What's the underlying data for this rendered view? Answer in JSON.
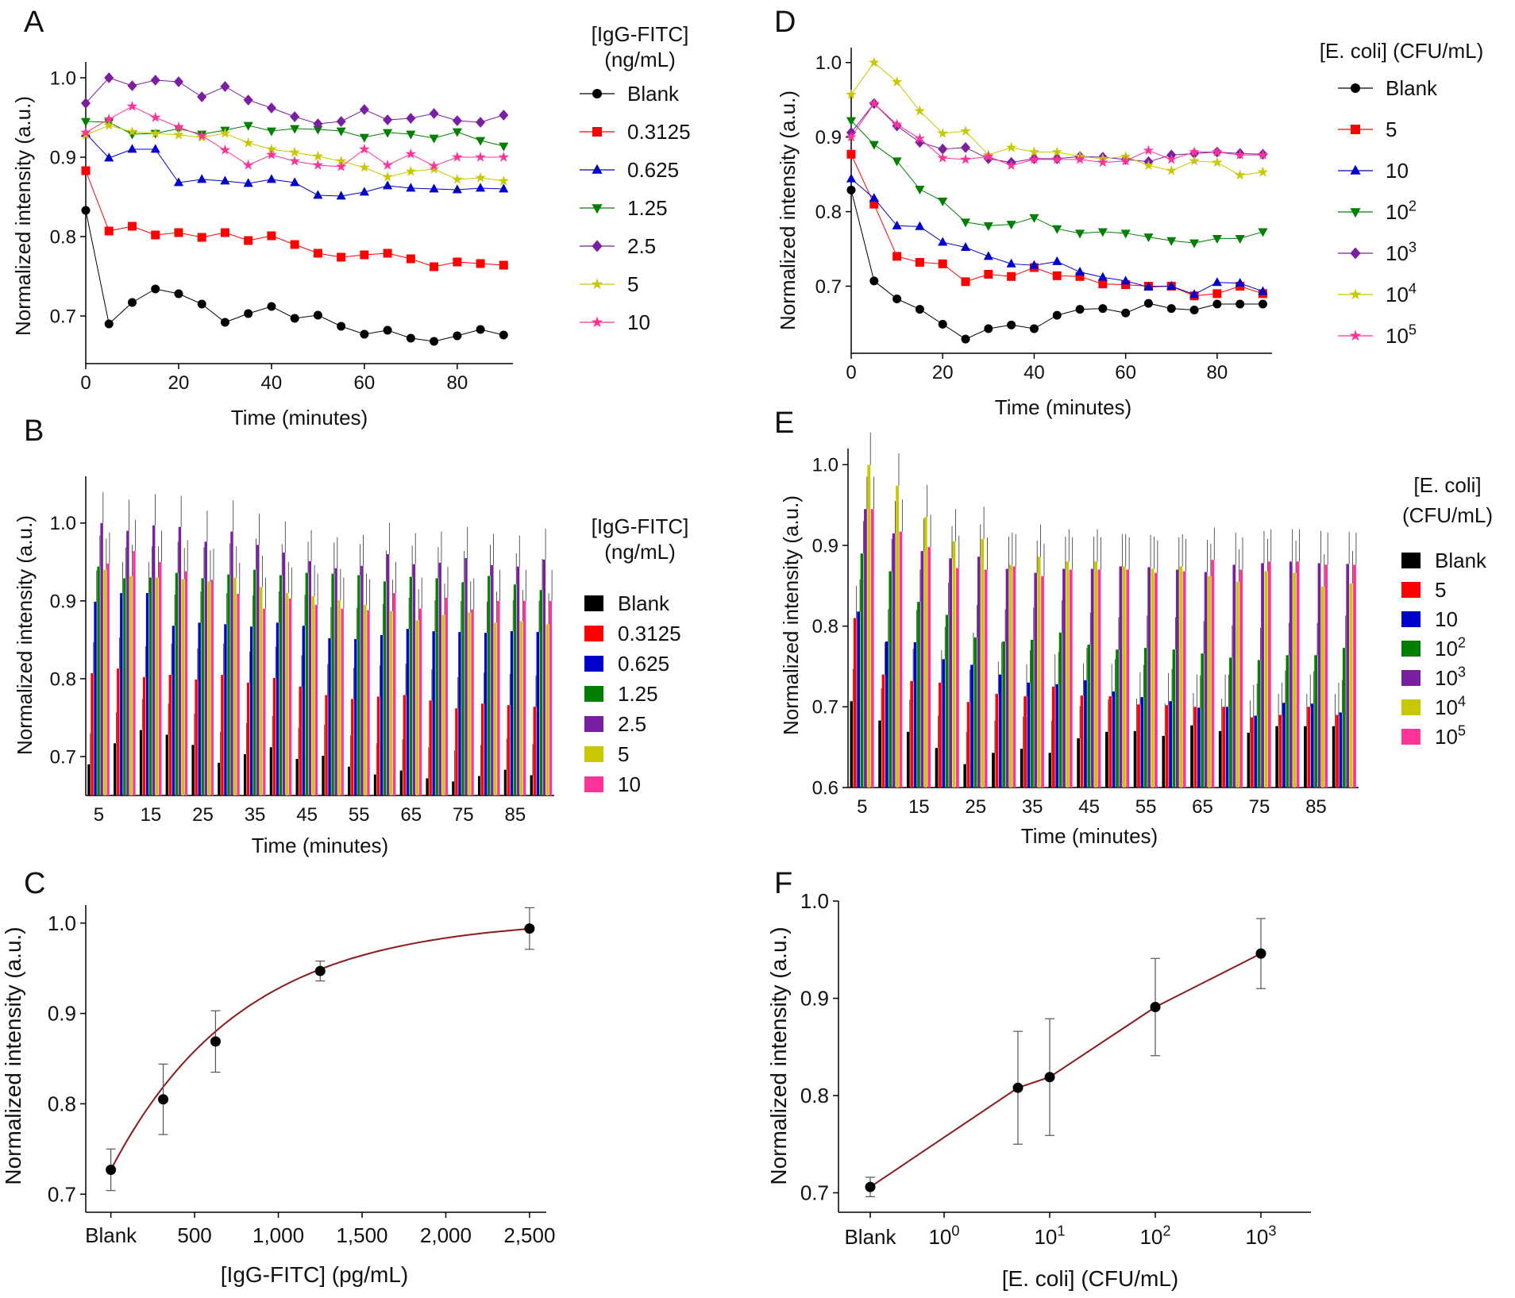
{
  "colors": {
    "black": "#000000",
    "red": "#ff0000",
    "blue": "#0000cc",
    "green": "#008000",
    "purple": "#7b1fa2",
    "olive": "#c8c800",
    "pink": "#ff3399",
    "fit": "#8b1a1a"
  },
  "panels": {
    "A": {
      "letter": "A",
      "xlabel": "Time (minutes)",
      "ylabel": "Normalized intensity (a.u.)",
      "legend_title": [
        "[IgG-FITC]",
        "(ng/mL)"
      ]
    },
    "B": {
      "letter": "B",
      "xlabel": "Time (minutes)",
      "ylabel": "Normalized intensity (a.u.)",
      "legend_title": [
        "[IgG-FITC]",
        "(ng/mL)"
      ]
    },
    "C": {
      "letter": "C",
      "xlabel": "[IgG-FITC] (pg/mL)",
      "ylabel": "Normalized intensity (a.u.)"
    },
    "D": {
      "letter": "D",
      "xlabel": "Time (minutes)",
      "ylabel": "Normalized intensity (a.u.)",
      "legend_title": [
        "[E. coli] (CFU/mL)"
      ]
    },
    "E": {
      "letter": "E",
      "xlabel": "Time (minutes)",
      "ylabel": "Normalized intensity (a.u.)",
      "legend_title": [
        "[E. coli]",
        "(CFU/mL)"
      ]
    },
    "F": {
      "letter": "F",
      "xlabel": "[E. coli] (CFU/mL)",
      "ylabel": "Normalized intensity (a.u.)"
    }
  },
  "chart_data": [
    {
      "panel": "A",
      "type": "line",
      "x": [
        0,
        5,
        10,
        15,
        20,
        25,
        30,
        35,
        40,
        45,
        50,
        55,
        60,
        65,
        70,
        75,
        80,
        85,
        90
      ],
      "xlim": [
        0,
        92
      ],
      "ylim": [
        0.64,
        1.02
      ],
      "xticks": [
        0,
        20,
        40,
        60,
        80
      ],
      "yticks": [
        0.7,
        0.8,
        0.9,
        1.0
      ],
      "ytick_labels": [
        "0.7",
        "0.8",
        "0.9",
        "1.0"
      ],
      "series": [
        {
          "name": "Blank",
          "color": "#000000",
          "marker": "circle",
          "values": [
            0.833,
            0.69,
            0.717,
            0.734,
            0.728,
            0.715,
            0.692,
            0.703,
            0.712,
            0.697,
            0.701,
            0.687,
            0.677,
            0.682,
            0.672,
            0.668,
            0.675,
            0.683,
            0.676
          ]
        },
        {
          "name": "0.3125",
          "color": "#ff0000",
          "marker": "square",
          "values": [
            0.883,
            0.807,
            0.813,
            0.802,
            0.805,
            0.799,
            0.805,
            0.795,
            0.801,
            0.79,
            0.779,
            0.774,
            0.777,
            0.779,
            0.772,
            0.762,
            0.768,
            0.766,
            0.764
          ]
        },
        {
          "name": "0.625",
          "color": "#0000cc",
          "marker": "triangle-up",
          "values": [
            0.93,
            0.899,
            0.91,
            0.91,
            0.868,
            0.872,
            0.87,
            0.867,
            0.872,
            0.868,
            0.852,
            0.851,
            0.856,
            0.864,
            0.861,
            0.86,
            0.859,
            0.861,
            0.86
          ]
        },
        {
          "name": "1.25",
          "color": "#008000",
          "marker": "triangle-down",
          "values": [
            0.945,
            0.944,
            0.929,
            0.93,
            0.936,
            0.929,
            0.934,
            0.94,
            0.933,
            0.936,
            0.935,
            0.933,
            0.925,
            0.931,
            0.929,
            0.924,
            0.932,
            0.921,
            0.914
          ]
        },
        {
          "name": "2.5",
          "color": "#7b1fa2",
          "marker": "diamond",
          "values": [
            0.968,
            1.0,
            0.99,
            0.997,
            0.995,
            0.976,
            0.989,
            0.972,
            0.962,
            0.951,
            0.942,
            0.945,
            0.96,
            0.947,
            0.949,
            0.955,
            0.946,
            0.944,
            0.953
          ]
        },
        {
          "name": "5",
          "color": "#c8c800",
          "marker": "star",
          "values": [
            0.928,
            0.94,
            0.932,
            0.93,
            0.928,
            0.925,
            0.93,
            0.918,
            0.91,
            0.906,
            0.901,
            0.895,
            0.887,
            0.875,
            0.882,
            0.885,
            0.872,
            0.874,
            0.87
          ]
        },
        {
          "name": "10",
          "color": "#ff3399",
          "marker": "star",
          "values": [
            0.931,
            0.948,
            0.964,
            0.95,
            0.938,
            0.927,
            0.909,
            0.89,
            0.903,
            0.895,
            0.89,
            0.888,
            0.91,
            0.89,
            0.904,
            0.889,
            0.9,
            0.9,
            0.9
          ]
        }
      ]
    },
    {
      "panel": "B",
      "type": "bar",
      "categories": [
        5,
        10,
        15,
        20,
        25,
        30,
        35,
        40,
        45,
        50,
        55,
        60,
        65,
        70,
        75,
        80,
        85,
        90
      ],
      "xtick_labels": [
        "5",
        "15",
        "25",
        "35",
        "45",
        "55",
        "65",
        "75",
        "85"
      ],
      "xlim": [
        2.5,
        92.5
      ],
      "ylim": [
        0.65,
        1.06
      ],
      "yticks": [
        0.7,
        0.8,
        0.9,
        1.0
      ],
      "ytick_labels": [
        "0.7",
        "0.8",
        "0.9",
        "1.0"
      ],
      "error": 0.04,
      "series": [
        {
          "name": "Blank",
          "color": "#000000",
          "values": [
            0.69,
            0.717,
            0.734,
            0.728,
            0.715,
            0.692,
            0.703,
            0.712,
            0.697,
            0.701,
            0.687,
            0.677,
            0.682,
            0.672,
            0.668,
            0.675,
            0.683,
            0.676
          ]
        },
        {
          "name": "0.3125",
          "color": "#ff0000",
          "values": [
            0.807,
            0.813,
            0.802,
            0.805,
            0.799,
            0.805,
            0.795,
            0.801,
            0.79,
            0.779,
            0.774,
            0.777,
            0.779,
            0.772,
            0.762,
            0.768,
            0.766,
            0.764
          ]
        },
        {
          "name": "0.625",
          "color": "#0000cc",
          "values": [
            0.899,
            0.91,
            0.91,
            0.868,
            0.872,
            0.87,
            0.867,
            0.872,
            0.868,
            0.852,
            0.851,
            0.856,
            0.864,
            0.861,
            0.86,
            0.859,
            0.861,
            0.86
          ]
        },
        {
          "name": "1.25",
          "color": "#008000",
          "values": [
            0.944,
            0.929,
            0.93,
            0.936,
            0.929,
            0.934,
            0.94,
            0.933,
            0.936,
            0.935,
            0.933,
            0.925,
            0.931,
            0.929,
            0.924,
            0.932,
            0.921,
            0.914
          ]
        },
        {
          "name": "2.5",
          "color": "#7b1fa2",
          "values": [
            1.0,
            0.99,
            0.997,
            0.995,
            0.976,
            0.989,
            0.972,
            0.962,
            0.951,
            0.942,
            0.945,
            0.96,
            0.947,
            0.949,
            0.955,
            0.946,
            0.944,
            0.953
          ]
        },
        {
          "name": "5",
          "color": "#c8c800",
          "values": [
            0.94,
            0.932,
            0.93,
            0.928,
            0.925,
            0.93,
            0.918,
            0.91,
            0.906,
            0.901,
            0.895,
            0.887,
            0.875,
            0.882,
            0.885,
            0.872,
            0.874,
            0.87
          ]
        },
        {
          "name": "10",
          "color": "#ff3399",
          "values": [
            0.948,
            0.964,
            0.95,
            0.938,
            0.927,
            0.909,
            0.89,
            0.903,
            0.895,
            0.89,
            0.888,
            0.91,
            0.89,
            0.904,
            0.889,
            0.9,
            0.9,
            0.9
          ]
        }
      ]
    },
    {
      "panel": "C",
      "type": "scatter",
      "x": [
        0,
        312.5,
        625,
        1250,
        2500
      ],
      "y": [
        0.727,
        0.805,
        0.869,
        0.947,
        0.994
      ],
      "yerr": [
        0.023,
        0.039,
        0.034,
        0.011,
        0.023
      ],
      "fit": {
        "model": "exponential rise to max",
        "ymax": 1.005,
        "span": 0.278,
        "rate": 0.00128
      },
      "xlim": [
        -150,
        2600
      ],
      "ylim": [
        0.68,
        1.02
      ],
      "xticks": [
        0,
        500,
        1000,
        1500,
        2000,
        2500
      ],
      "xtick_labels": [
        "Blank",
        "500",
        "1,000",
        "1,500",
        "2,000",
        "2,500"
      ],
      "yticks": [
        0.7,
        0.8,
        0.9,
        1.0
      ],
      "ytick_labels": [
        "0.7",
        "0.8",
        "0.9",
        "1.0"
      ]
    },
    {
      "panel": "D",
      "type": "line",
      "x": [
        0,
        5,
        10,
        15,
        20,
        25,
        30,
        35,
        40,
        45,
        50,
        55,
        60,
        65,
        70,
        75,
        80,
        85,
        90
      ],
      "xlim": [
        0,
        92
      ],
      "ylim": [
        0.61,
        1.02
      ],
      "xticks": [
        0,
        20,
        40,
        60,
        80
      ],
      "yticks": [
        0.7,
        0.8,
        0.9,
        1.0
      ],
      "ytick_labels": [
        "0.7",
        "0.8",
        "0.9",
        "1.0"
      ],
      "series": [
        {
          "name": "Blank",
          "color": "#000000",
          "marker": "circle",
          "values": [
            0.829,
            0.707,
            0.683,
            0.669,
            0.649,
            0.629,
            0.643,
            0.648,
            0.643,
            0.661,
            0.669,
            0.67,
            0.664,
            0.677,
            0.67,
            0.668,
            0.676,
            0.676,
            0.676
          ]
        },
        {
          "name": "5",
          "color": "#ff0000",
          "marker": "square",
          "values": [
            0.877,
            0.81,
            0.74,
            0.732,
            0.73,
            0.706,
            0.716,
            0.713,
            0.725,
            0.714,
            0.713,
            0.703,
            0.702,
            0.7,
            0.7,
            0.687,
            0.69,
            0.7,
            0.69
          ]
        },
        {
          "name": "10",
          "color": "#0000cc",
          "marker": "triangle-up",
          "values": [
            0.844,
            0.818,
            0.781,
            0.78,
            0.759,
            0.752,
            0.74,
            0.73,
            0.728,
            0.733,
            0.719,
            0.712,
            0.707,
            0.699,
            0.7,
            0.689,
            0.705,
            0.704,
            0.693
          ]
        },
        {
          "name": "10^2",
          "color": "#008000",
          "marker": "triangle-down",
          "values": [
            0.922,
            0.89,
            0.868,
            0.83,
            0.814,
            0.786,
            0.781,
            0.783,
            0.792,
            0.777,
            0.771,
            0.773,
            0.771,
            0.766,
            0.761,
            0.758,
            0.764,
            0.764,
            0.773
          ]
        },
        {
          "name": "10^3",
          "color": "#7b1fa2",
          "marker": "diamond",
          "values": [
            0.906,
            0.945,
            0.915,
            0.893,
            0.884,
            0.886,
            0.871,
            0.866,
            0.871,
            0.871,
            0.874,
            0.873,
            0.87,
            0.867,
            0.876,
            0.878,
            0.88,
            0.878,
            0.877
          ]
        },
        {
          "name": "10^4",
          "color": "#c8c800",
          "marker": "star",
          "values": [
            0.957,
            1.0,
            0.974,
            0.935,
            0.905,
            0.908,
            0.876,
            0.886,
            0.88,
            0.88,
            0.874,
            0.871,
            0.874,
            0.862,
            0.855,
            0.868,
            0.866,
            0.849,
            0.853
          ]
        },
        {
          "name": "10^5",
          "color": "#ff3399",
          "marker": "star",
          "values": [
            0.9,
            0.945,
            0.917,
            0.898,
            0.872,
            0.87,
            0.874,
            0.862,
            0.87,
            0.87,
            0.87,
            0.866,
            0.868,
            0.882,
            0.87,
            0.88,
            0.88,
            0.876,
            0.876
          ]
        }
      ]
    },
    {
      "panel": "E",
      "type": "bar",
      "categories": [
        5,
        10,
        15,
        20,
        25,
        30,
        35,
        40,
        45,
        50,
        55,
        60,
        65,
        70,
        75,
        80,
        85,
        90
      ],
      "xtick_labels": [
        "5",
        "15",
        "25",
        "35",
        "45",
        "55",
        "65",
        "75",
        "85"
      ],
      "xlim": [
        2.5,
        92.5
      ],
      "ylim": [
        0.6,
        1.02
      ],
      "yticks": [
        0.6,
        0.7,
        0.8,
        0.9,
        1.0
      ],
      "ytick_labels": [
        "0.6",
        "0.7",
        "0.8",
        "0.9",
        "1.0"
      ],
      "error": 0.04,
      "series": [
        {
          "name": "Blank",
          "color": "#000000",
          "values": [
            0.707,
            0.683,
            0.669,
            0.649,
            0.629,
            0.643,
            0.648,
            0.643,
            0.661,
            0.669,
            0.67,
            0.664,
            0.677,
            0.67,
            0.668,
            0.676,
            0.676,
            0.676
          ]
        },
        {
          "name": "5",
          "color": "#ff0000",
          "values": [
            0.81,
            0.74,
            0.732,
            0.73,
            0.706,
            0.716,
            0.713,
            0.725,
            0.714,
            0.713,
            0.703,
            0.702,
            0.7,
            0.7,
            0.687,
            0.69,
            0.7,
            0.69
          ]
        },
        {
          "name": "10",
          "color": "#0000cc",
          "values": [
            0.818,
            0.781,
            0.78,
            0.759,
            0.752,
            0.74,
            0.73,
            0.728,
            0.733,
            0.719,
            0.712,
            0.707,
            0.699,
            0.7,
            0.689,
            0.705,
            0.704,
            0.693
          ]
        },
        {
          "name": "10^2",
          "color": "#008000",
          "values": [
            0.89,
            0.868,
            0.83,
            0.814,
            0.786,
            0.781,
            0.783,
            0.792,
            0.777,
            0.771,
            0.773,
            0.771,
            0.766,
            0.761,
            0.758,
            0.764,
            0.764,
            0.773
          ]
        },
        {
          "name": "10^3",
          "color": "#7b1fa2",
          "values": [
            0.945,
            0.915,
            0.893,
            0.884,
            0.886,
            0.871,
            0.866,
            0.871,
            0.871,
            0.874,
            0.873,
            0.87,
            0.867,
            0.876,
            0.878,
            0.88,
            0.878,
            0.877
          ]
        },
        {
          "name": "10^4",
          "color": "#c8c800",
          "values": [
            1.0,
            0.974,
            0.935,
            0.905,
            0.908,
            0.876,
            0.886,
            0.88,
            0.88,
            0.874,
            0.871,
            0.874,
            0.862,
            0.855,
            0.868,
            0.866,
            0.849,
            0.853
          ]
        },
        {
          "name": "10^5",
          "color": "#ff3399",
          "values": [
            0.945,
            0.917,
            0.898,
            0.872,
            0.87,
            0.874,
            0.862,
            0.87,
            0.87,
            0.87,
            0.866,
            0.868,
            0.882,
            0.87,
            0.88,
            0.88,
            0.876,
            0.876
          ]
        }
      ]
    },
    {
      "panel": "F",
      "type": "scatter",
      "x_log10": [
        null,
        0.699,
        1,
        2,
        3
      ],
      "x_categories": [
        "Blank",
        "5",
        "10",
        "10^2",
        "10^3"
      ],
      "y": [
        0.706,
        0.808,
        0.819,
        0.891,
        0.946
      ],
      "yerr": [
        0.01,
        0.058,
        0.06,
        0.05,
        0.036
      ],
      "fit": {
        "model": "linear through points"
      },
      "ylim": [
        0.68,
        1.0
      ],
      "xtick_labels": [
        "Blank",
        "10^0",
        "10^1",
        "10^2",
        "10^3"
      ],
      "yticks": [
        0.7,
        0.8,
        0.9,
        1.0
      ],
      "ytick_labels": [
        "0.7",
        "0.8",
        "0.9",
        "1.0"
      ]
    }
  ]
}
